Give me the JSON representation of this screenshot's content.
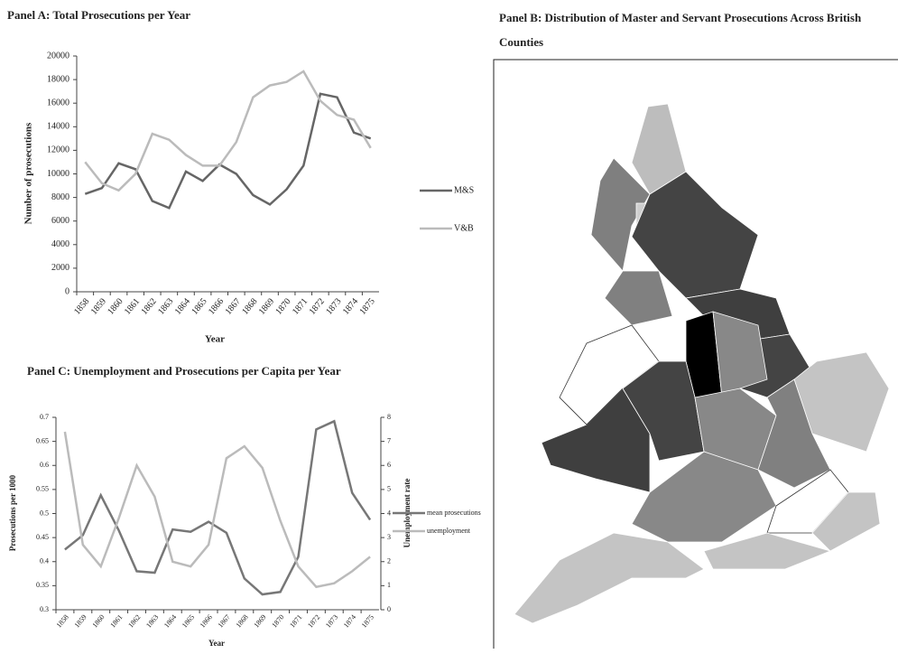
{
  "chart_data": [
    {
      "type": "line",
      "title": "Panel A: Total Prosecutions per Year",
      "xlabel": "Year",
      "ylabel": "Number of prosecutions",
      "categories": [
        "1858",
        "1859",
        "1860",
        "1861",
        "1862",
        "1863",
        "1864",
        "1865",
        "1866",
        "1867",
        "1868",
        "1869",
        "1870",
        "1871",
        "1872",
        "1873",
        "1874",
        "1875"
      ],
      "ylim": [
        0,
        20000
      ],
      "yticks": [
        0,
        2000,
        4000,
        6000,
        8000,
        10000,
        12000,
        14000,
        16000,
        18000,
        20000
      ],
      "legend": "right",
      "series": [
        {
          "name": "M&S",
          "color": "#666666",
          "values": [
            8300,
            8800,
            10900,
            10400,
            7700,
            7100,
            10200,
            9400,
            10800,
            10000,
            8200,
            7400,
            8700,
            10700,
            16800,
            16500,
            13500,
            13000
          ]
        },
        {
          "name": "V&B",
          "color": "#bbbbbb",
          "values": [
            11000,
            9200,
            8600,
            10000,
            13400,
            12900,
            11600,
            10700,
            10700,
            12700,
            16500,
            17500,
            17800,
            18700,
            16200,
            15000,
            14600,
            12200
          ]
        }
      ]
    },
    {
      "type": "map",
      "title": "Panel B: Distribution of Master and Servant Prosecutions Across British Counties"
    },
    {
      "type": "line",
      "title": "Panel C: Unemployment and  Prosecutions per Capita per Year",
      "xlabel": "Year",
      "ylabel": "Prosecutions per 1000",
      "y2label": "Unemployment rate",
      "categories": [
        "1858",
        "1859",
        "1860",
        "1861",
        "1862",
        "1863",
        "1864",
        "1865",
        "1866",
        "1867",
        "1868",
        "1869",
        "1870",
        "1871",
        "1872",
        "1873",
        "1874",
        "1875"
      ],
      "ylim": [
        0.3,
        0.7
      ],
      "yticks": [
        0.3,
        0.35,
        0.4,
        0.45,
        0.5,
        0.55,
        0.6,
        0.65,
        0.7
      ],
      "y2lim": [
        0,
        8
      ],
      "y2ticks": [
        0,
        1,
        2,
        3,
        4,
        5,
        6,
        7,
        8
      ],
      "legend": "right",
      "series": [
        {
          "name": "mean prosecutions",
          "color": "#777777",
          "values": [
            0.425,
            0.455,
            0.538,
            0.465,
            0.38,
            0.377,
            0.467,
            0.462,
            0.483,
            0.46,
            0.365,
            0.332,
            0.337,
            0.41,
            0.675,
            0.692,
            0.543,
            0.487
          ]
        },
        {
          "name": "unemployment",
          "color": "#bbbbbb",
          "axis": "y2",
          "values": [
            7.4,
            2.7,
            1.8,
            3.8,
            6.0,
            4.7,
            2.0,
            1.8,
            2.7,
            6.3,
            6.8,
            5.9,
            3.7,
            1.8,
            0.95,
            1.1,
            1.6,
            2.2
          ]
        }
      ]
    }
  ]
}
